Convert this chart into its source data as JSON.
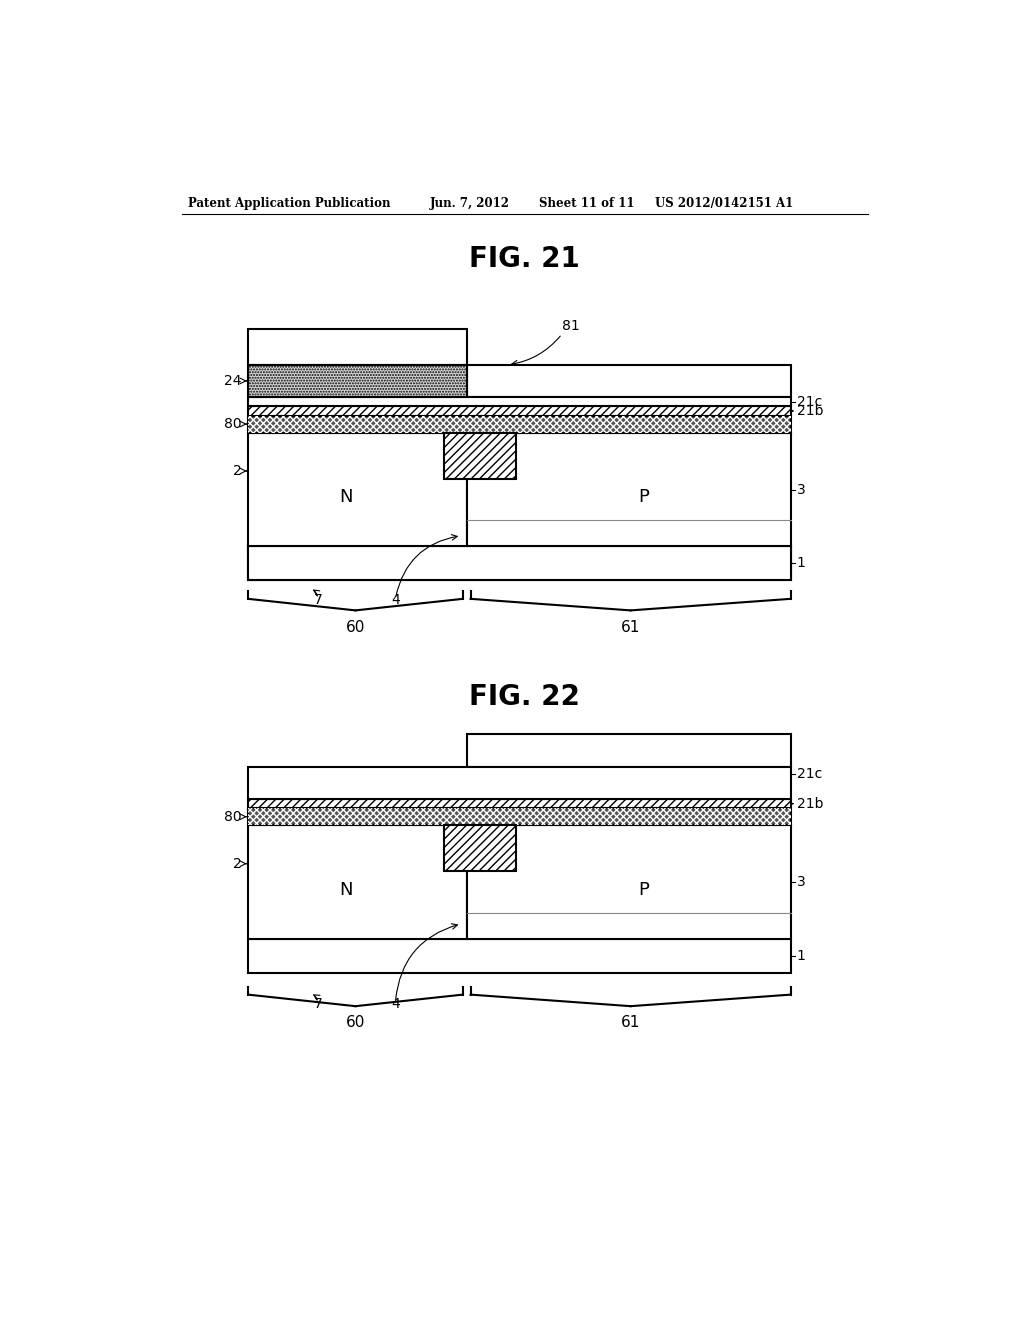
{
  "bg_color": "#ffffff",
  "header_text": "Patent Application Publication",
  "header_date": "Jun. 7, 2012",
  "header_sheet": "Sheet 11 of 11",
  "header_patent": "US 2012/0142151 A1",
  "fig21_title": "FIG. 21",
  "fig22_title": "FIG. 22"
}
